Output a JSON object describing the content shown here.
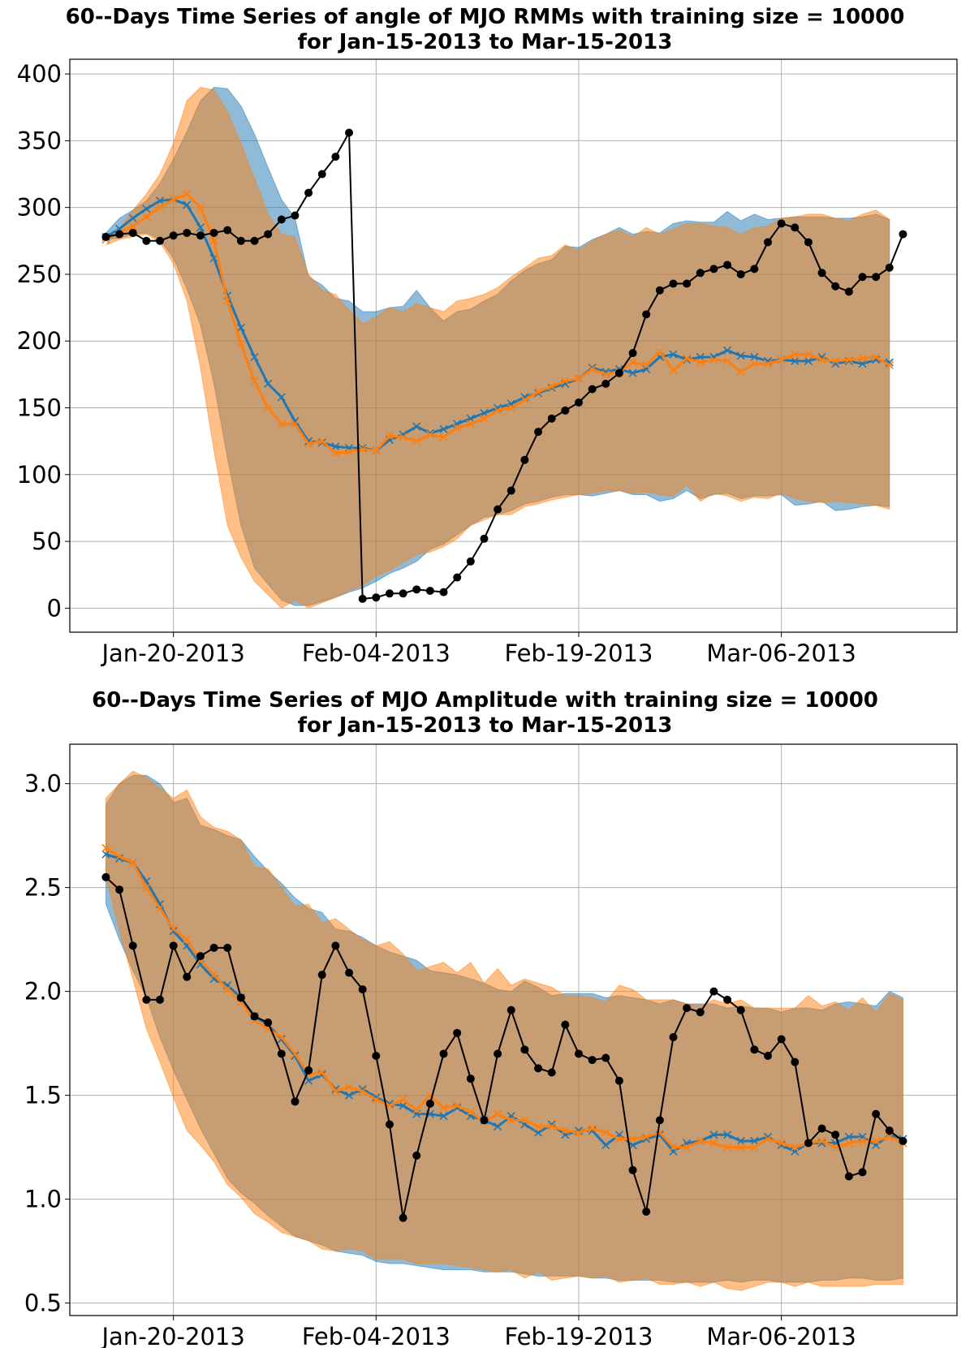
{
  "chart_data": [
    {
      "type": "line",
      "title": "60--Days Time Series of angle of MJO RMMs with training size = 10000",
      "subtitle": "for Jan-15-2013 to Mar-15-2013",
      "xlabel": "",
      "ylabel": "",
      "x_ticks": [
        "Jan-20-2013",
        "Feb-04-2013",
        "Feb-19-2013",
        "Mar-06-2013"
      ],
      "x_tick_days": [
        5,
        20,
        35,
        50
      ],
      "xlim": [
        -2.67,
        63.0
      ],
      "y_ticks": [
        "0",
        "50",
        "100",
        "150",
        "200",
        "250",
        "300",
        "350",
        "400"
      ],
      "ylim": [
        -18,
        411
      ],
      "grid": true,
      "series": [
        {
          "color": "#1f77b4",
          "marker": "x",
          "band": "fill",
          "mean": [
            278,
            284,
            292,
            299,
            305,
            306,
            302,
            285,
            262,
            234,
            210,
            188,
            168,
            158,
            140,
            125,
            124,
            121,
            120,
            120,
            118,
            126,
            130,
            136,
            131,
            134,
            138,
            142,
            146,
            150,
            153,
            158,
            161,
            165,
            168,
            172,
            180,
            177,
            179,
            176,
            179,
            188,
            190,
            186,
            188,
            188,
            193,
            189,
            188,
            185,
            186,
            185,
            185,
            188,
            183,
            185,
            183,
            186,
            184
          ],
          "upper": [
            281,
            292,
            298,
            305,
            318,
            336,
            357,
            380,
            390,
            389,
            376,
            355,
            330,
            306,
            292,
            248,
            242,
            232,
            230,
            222,
            222,
            225,
            226,
            238,
            225,
            215,
            222,
            224,
            230,
            235,
            245,
            253,
            258,
            261,
            271,
            270,
            276,
            280,
            285,
            280,
            282,
            281,
            288,
            290,
            289,
            289,
            297,
            290,
            295,
            291,
            292,
            293,
            293,
            293,
            292,
            292,
            293,
            295,
            291
          ],
          "lower": [
            276,
            277,
            280,
            281,
            276,
            262,
            239,
            212,
            168,
            112,
            62,
            30,
            18,
            6,
            2,
            2,
            5,
            8,
            12,
            15,
            20,
            26,
            30,
            35,
            44,
            48,
            55,
            62,
            68,
            70,
            73,
            78,
            80,
            83,
            85,
            85,
            84,
            86,
            88,
            85,
            85,
            80,
            82,
            88,
            82,
            85,
            86,
            82,
            84,
            84,
            85,
            77,
            78,
            80,
            73,
            74,
            76,
            77,
            76
          ]
        },
        {
          "color": "#ff7f0e",
          "marker": "x",
          "band": "fill",
          "mean": [
            276,
            281,
            286,
            293,
            300,
            306,
            310,
            300,
            275,
            230,
            198,
            170,
            150,
            138,
            138,
            123,
            125,
            116,
            117,
            119,
            118,
            129,
            128,
            125,
            130,
            128,
            135,
            138,
            142,
            148,
            150,
            156,
            162,
            166,
            170,
            172,
            179,
            175,
            177,
            184,
            182,
            192,
            178,
            187,
            184,
            186,
            185,
            177,
            183,
            183,
            186,
            190,
            190,
            186,
            185,
            186,
            187,
            188,
            182
          ],
          "upper": [
            272,
            284,
            298,
            310,
            325,
            348,
            380,
            390,
            388,
            372,
            348,
            322,
            295,
            280,
            278,
            250,
            238,
            235,
            223,
            213,
            218,
            225,
            222,
            228,
            225,
            222,
            230,
            232,
            235,
            240,
            248,
            255,
            262,
            264,
            272,
            268,
            275,
            280,
            283,
            278,
            285,
            280,
            284,
            288,
            288,
            286,
            285,
            280,
            285,
            286,
            292,
            293,
            295,
            295,
            292,
            290,
            295,
            298,
            291
          ],
          "lower": [
            272,
            276,
            278,
            280,
            274,
            258,
            230,
            180,
            118,
            62,
            38,
            20,
            10,
            0,
            6,
            0,
            4,
            8,
            13,
            17,
            24,
            28,
            34,
            40,
            42,
            46,
            52,
            62,
            66,
            70,
            70,
            76,
            78,
            81,
            83,
            85,
            86,
            88,
            88,
            86,
            87,
            85,
            84,
            92,
            80,
            86,
            84,
            80,
            83,
            82,
            86,
            82,
            80,
            79,
            80,
            79,
            78,
            77,
            74
          ]
        },
        {
          "color": "#000000",
          "marker": "o",
          "band": "none",
          "values": [
            278,
            280,
            281,
            275,
            275,
            279,
            281,
            279,
            281,
            283,
            275,
            275,
            280,
            291,
            294,
            311,
            325,
            338,
            356,
            7,
            8,
            11,
            11,
            14,
            13,
            12,
            23,
            35,
            52,
            74,
            88,
            111,
            132,
            142,
            148,
            154,
            164,
            168,
            176,
            191,
            220,
            238,
            243,
            243,
            251,
            254,
            257,
            250,
            254,
            274,
            288,
            285,
            274,
            251,
            241,
            237,
            248,
            248,
            255,
            280
          ],
          "note_jump": [
            18,
            19
          ]
        }
      ]
    },
    {
      "type": "line",
      "title": "60--Days Time Series of MJO Amplitude with training size = 10000",
      "subtitle": "for Jan-15-2013 to Mar-15-2013",
      "xlabel": "",
      "ylabel": "",
      "x_ticks": [
        "Jan-20-2013",
        "Feb-04-2013",
        "Feb-19-2013",
        "Mar-06-2013"
      ],
      "x_tick_days": [
        5,
        20,
        35,
        50
      ],
      "xlim": [
        -2.67,
        63.0
      ],
      "y_ticks": [
        "0.5",
        "1.0",
        "1.5",
        "2.0",
        "2.5",
        "3.0"
      ],
      "ylim": [
        0.44,
        3.19
      ],
      "grid": true,
      "series": [
        {
          "color": "#1f77b4",
          "marker": "x",
          "band": "fill",
          "mean": [
            2.66,
            2.64,
            2.62,
            2.53,
            2.42,
            2.29,
            2.22,
            2.13,
            2.06,
            2.03,
            1.97,
            1.88,
            1.84,
            1.77,
            1.69,
            1.57,
            1.6,
            1.53,
            1.5,
            1.53,
            1.49,
            1.46,
            1.45,
            1.41,
            1.41,
            1.4,
            1.44,
            1.4,
            1.38,
            1.35,
            1.4,
            1.36,
            1.32,
            1.36,
            1.31,
            1.33,
            1.33,
            1.26,
            1.31,
            1.26,
            1.29,
            1.31,
            1.23,
            1.27,
            1.28,
            1.31,
            1.31,
            1.28,
            1.28,
            1.3,
            1.26,
            1.23,
            1.27,
            1.27,
            1.27,
            1.3,
            1.3,
            1.26,
            1.31,
            1.29
          ],
          "upper": [
            2.9,
            3.0,
            3.04,
            3.04,
            3.0,
            2.91,
            2.93,
            2.8,
            2.78,
            2.75,
            2.73,
            2.65,
            2.58,
            2.52,
            2.45,
            2.4,
            2.38,
            2.3,
            2.29,
            2.26,
            2.22,
            2.19,
            2.17,
            2.15,
            2.1,
            2.09,
            2.08,
            2.06,
            2.04,
            2.01,
            2.0,
            2.05,
            2.02,
            1.98,
            1.99,
            1.99,
            1.99,
            1.97,
            1.98,
            1.97,
            1.96,
            1.94,
            1.96,
            1.94,
            1.94,
            1.94,
            1.92,
            1.93,
            1.92,
            1.92,
            1.9,
            1.92,
            1.92,
            1.91,
            1.94,
            1.95,
            1.94,
            1.93,
            2.0,
            1.97
          ],
          "lower": [
            2.42,
            2.25,
            2.1,
            1.97,
            1.78,
            1.62,
            1.48,
            1.34,
            1.22,
            1.1,
            1.03,
            0.98,
            0.92,
            0.87,
            0.82,
            0.8,
            0.78,
            0.75,
            0.74,
            0.73,
            0.7,
            0.69,
            0.69,
            0.68,
            0.67,
            0.66,
            0.66,
            0.66,
            0.65,
            0.65,
            0.65,
            0.64,
            0.63,
            0.63,
            0.63,
            0.63,
            0.62,
            0.62,
            0.61,
            0.61,
            0.61,
            0.61,
            0.6,
            0.6,
            0.6,
            0.6,
            0.61,
            0.6,
            0.61,
            0.61,
            0.6,
            0.6,
            0.6,
            0.61,
            0.61,
            0.62,
            0.62,
            0.61,
            0.61,
            0.62
          ]
        },
        {
          "color": "#ff7f0e",
          "marker": "x",
          "band": "fill",
          "mean": [
            2.69,
            2.65,
            2.62,
            2.5,
            2.4,
            2.3,
            2.25,
            2.15,
            2.08,
            2.01,
            1.95,
            1.86,
            1.82,
            1.78,
            1.7,
            1.6,
            1.61,
            1.52,
            1.54,
            1.52,
            1.48,
            1.45,
            1.48,
            1.43,
            1.5,
            1.44,
            1.45,
            1.42,
            1.37,
            1.41,
            1.38,
            1.38,
            1.35,
            1.35,
            1.33,
            1.32,
            1.34,
            1.32,
            1.29,
            1.29,
            1.3,
            1.32,
            1.25,
            1.25,
            1.28,
            1.27,
            1.25,
            1.25,
            1.25,
            1.29,
            1.27,
            1.25,
            1.27,
            1.28,
            1.25,
            1.27,
            1.28,
            1.28,
            1.3,
            1.27
          ],
          "upper": [
            2.93,
            3.0,
            3.06,
            3.03,
            2.98,
            2.93,
            2.97,
            2.84,
            2.79,
            2.77,
            2.73,
            2.6,
            2.59,
            2.5,
            2.41,
            2.42,
            2.33,
            2.35,
            2.3,
            2.25,
            2.22,
            2.24,
            2.18,
            2.1,
            2.12,
            2.14,
            2.09,
            2.14,
            2.04,
            2.11,
            2.03,
            2.06,
            2.04,
            2.02,
            1.98,
            1.98,
            1.97,
            1.95,
            2.03,
            2.01,
            1.96,
            1.96,
            1.96,
            1.94,
            1.93,
            1.96,
            1.94,
            1.96,
            1.92,
            1.92,
            1.92,
            1.92,
            1.98,
            1.93,
            1.95,
            1.91,
            1.97,
            1.9,
            1.99,
            1.96
          ],
          "lower": [
            2.55,
            2.29,
            2.06,
            1.82,
            1.66,
            1.49,
            1.33,
            1.26,
            1.18,
            1.07,
            1.01,
            0.93,
            0.89,
            0.84,
            0.82,
            0.8,
            0.76,
            0.75,
            0.76,
            0.75,
            0.71,
            0.71,
            0.71,
            0.69,
            0.69,
            0.69,
            0.68,
            0.67,
            0.66,
            0.65,
            0.66,
            0.62,
            0.65,
            0.61,
            0.62,
            0.63,
            0.62,
            0.63,
            0.6,
            0.61,
            0.62,
            0.59,
            0.59,
            0.6,
            0.58,
            0.6,
            0.57,
            0.56,
            0.58,
            0.6,
            0.6,
            0.58,
            0.6,
            0.58,
            0.58,
            0.58,
            0.58,
            0.59,
            0.59,
            0.59
          ]
        },
        {
          "color": "#000000",
          "marker": "o",
          "band": "none",
          "values": [
            2.55,
            2.49,
            2.22,
            1.96,
            1.96,
            2.22,
            2.07,
            2.17,
            2.21,
            2.21,
            1.97,
            1.88,
            1.85,
            1.7,
            1.47,
            1.62,
            2.08,
            2.22,
            2.09,
            2.01,
            1.69,
            1.36,
            0.91,
            1.21,
            1.46,
            1.7,
            1.8,
            1.58,
            1.38,
            1.7,
            1.91,
            1.72,
            1.63,
            1.61,
            1.84,
            1.7,
            1.67,
            1.68,
            1.57,
            1.14,
            0.94,
            1.38,
            1.78,
            1.92,
            1.9,
            2.0,
            1.96,
            1.91,
            1.72,
            1.69,
            1.77,
            1.66,
            1.27,
            1.34,
            1.31,
            1.11,
            1.13,
            1.41,
            1.33,
            1.28
          ]
        }
      ]
    }
  ]
}
